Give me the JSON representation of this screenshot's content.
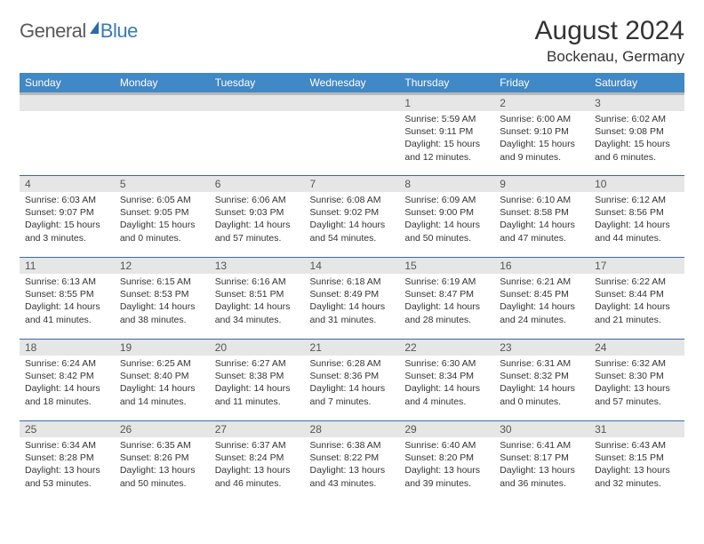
{
  "brand": {
    "part1": "General",
    "part2": "Blue"
  },
  "title": "August 2024",
  "location": "Bockenau, Germany",
  "colors": {
    "header_bg": "#4088c6",
    "header_text": "#ffffff",
    "daynum_bg": "#e6e6e6",
    "row_border": "#3a6aa0",
    "logo_gray": "#5a5a5a",
    "logo_blue": "#3a7ab8"
  },
  "dayNames": [
    "Sunday",
    "Monday",
    "Tuesday",
    "Wednesday",
    "Thursday",
    "Friday",
    "Saturday"
  ],
  "weeks": [
    [
      null,
      null,
      null,
      null,
      {
        "n": "1",
        "sr": "5:59 AM",
        "ss": "9:11 PM",
        "dl": "15 hours and 12 minutes."
      },
      {
        "n": "2",
        "sr": "6:00 AM",
        "ss": "9:10 PM",
        "dl": "15 hours and 9 minutes."
      },
      {
        "n": "3",
        "sr": "6:02 AM",
        "ss": "9:08 PM",
        "dl": "15 hours and 6 minutes."
      }
    ],
    [
      {
        "n": "4",
        "sr": "6:03 AM",
        "ss": "9:07 PM",
        "dl": "15 hours and 3 minutes."
      },
      {
        "n": "5",
        "sr": "6:05 AM",
        "ss": "9:05 PM",
        "dl": "15 hours and 0 minutes."
      },
      {
        "n": "6",
        "sr": "6:06 AM",
        "ss": "9:03 PM",
        "dl": "14 hours and 57 minutes."
      },
      {
        "n": "7",
        "sr": "6:08 AM",
        "ss": "9:02 PM",
        "dl": "14 hours and 54 minutes."
      },
      {
        "n": "8",
        "sr": "6:09 AM",
        "ss": "9:00 PM",
        "dl": "14 hours and 50 minutes."
      },
      {
        "n": "9",
        "sr": "6:10 AM",
        "ss": "8:58 PM",
        "dl": "14 hours and 47 minutes."
      },
      {
        "n": "10",
        "sr": "6:12 AM",
        "ss": "8:56 PM",
        "dl": "14 hours and 44 minutes."
      }
    ],
    [
      {
        "n": "11",
        "sr": "6:13 AM",
        "ss": "8:55 PM",
        "dl": "14 hours and 41 minutes."
      },
      {
        "n": "12",
        "sr": "6:15 AM",
        "ss": "8:53 PM",
        "dl": "14 hours and 38 minutes."
      },
      {
        "n": "13",
        "sr": "6:16 AM",
        "ss": "8:51 PM",
        "dl": "14 hours and 34 minutes."
      },
      {
        "n": "14",
        "sr": "6:18 AM",
        "ss": "8:49 PM",
        "dl": "14 hours and 31 minutes."
      },
      {
        "n": "15",
        "sr": "6:19 AM",
        "ss": "8:47 PM",
        "dl": "14 hours and 28 minutes."
      },
      {
        "n": "16",
        "sr": "6:21 AM",
        "ss": "8:45 PM",
        "dl": "14 hours and 24 minutes."
      },
      {
        "n": "17",
        "sr": "6:22 AM",
        "ss": "8:44 PM",
        "dl": "14 hours and 21 minutes."
      }
    ],
    [
      {
        "n": "18",
        "sr": "6:24 AM",
        "ss": "8:42 PM",
        "dl": "14 hours and 18 minutes."
      },
      {
        "n": "19",
        "sr": "6:25 AM",
        "ss": "8:40 PM",
        "dl": "14 hours and 14 minutes."
      },
      {
        "n": "20",
        "sr": "6:27 AM",
        "ss": "8:38 PM",
        "dl": "14 hours and 11 minutes."
      },
      {
        "n": "21",
        "sr": "6:28 AM",
        "ss": "8:36 PM",
        "dl": "14 hours and 7 minutes."
      },
      {
        "n": "22",
        "sr": "6:30 AM",
        "ss": "8:34 PM",
        "dl": "14 hours and 4 minutes."
      },
      {
        "n": "23",
        "sr": "6:31 AM",
        "ss": "8:32 PM",
        "dl": "14 hours and 0 minutes."
      },
      {
        "n": "24",
        "sr": "6:32 AM",
        "ss": "8:30 PM",
        "dl": "13 hours and 57 minutes."
      }
    ],
    [
      {
        "n": "25",
        "sr": "6:34 AM",
        "ss": "8:28 PM",
        "dl": "13 hours and 53 minutes."
      },
      {
        "n": "26",
        "sr": "6:35 AM",
        "ss": "8:26 PM",
        "dl": "13 hours and 50 minutes."
      },
      {
        "n": "27",
        "sr": "6:37 AM",
        "ss": "8:24 PM",
        "dl": "13 hours and 46 minutes."
      },
      {
        "n": "28",
        "sr": "6:38 AM",
        "ss": "8:22 PM",
        "dl": "13 hours and 43 minutes."
      },
      {
        "n": "29",
        "sr": "6:40 AM",
        "ss": "8:20 PM",
        "dl": "13 hours and 39 minutes."
      },
      {
        "n": "30",
        "sr": "6:41 AM",
        "ss": "8:17 PM",
        "dl": "13 hours and 36 minutes."
      },
      {
        "n": "31",
        "sr": "6:43 AM",
        "ss": "8:15 PM",
        "dl": "13 hours and 32 minutes."
      }
    ]
  ],
  "labels": {
    "sunrise": "Sunrise:",
    "sunset": "Sunset:",
    "daylight": "Daylight:"
  }
}
